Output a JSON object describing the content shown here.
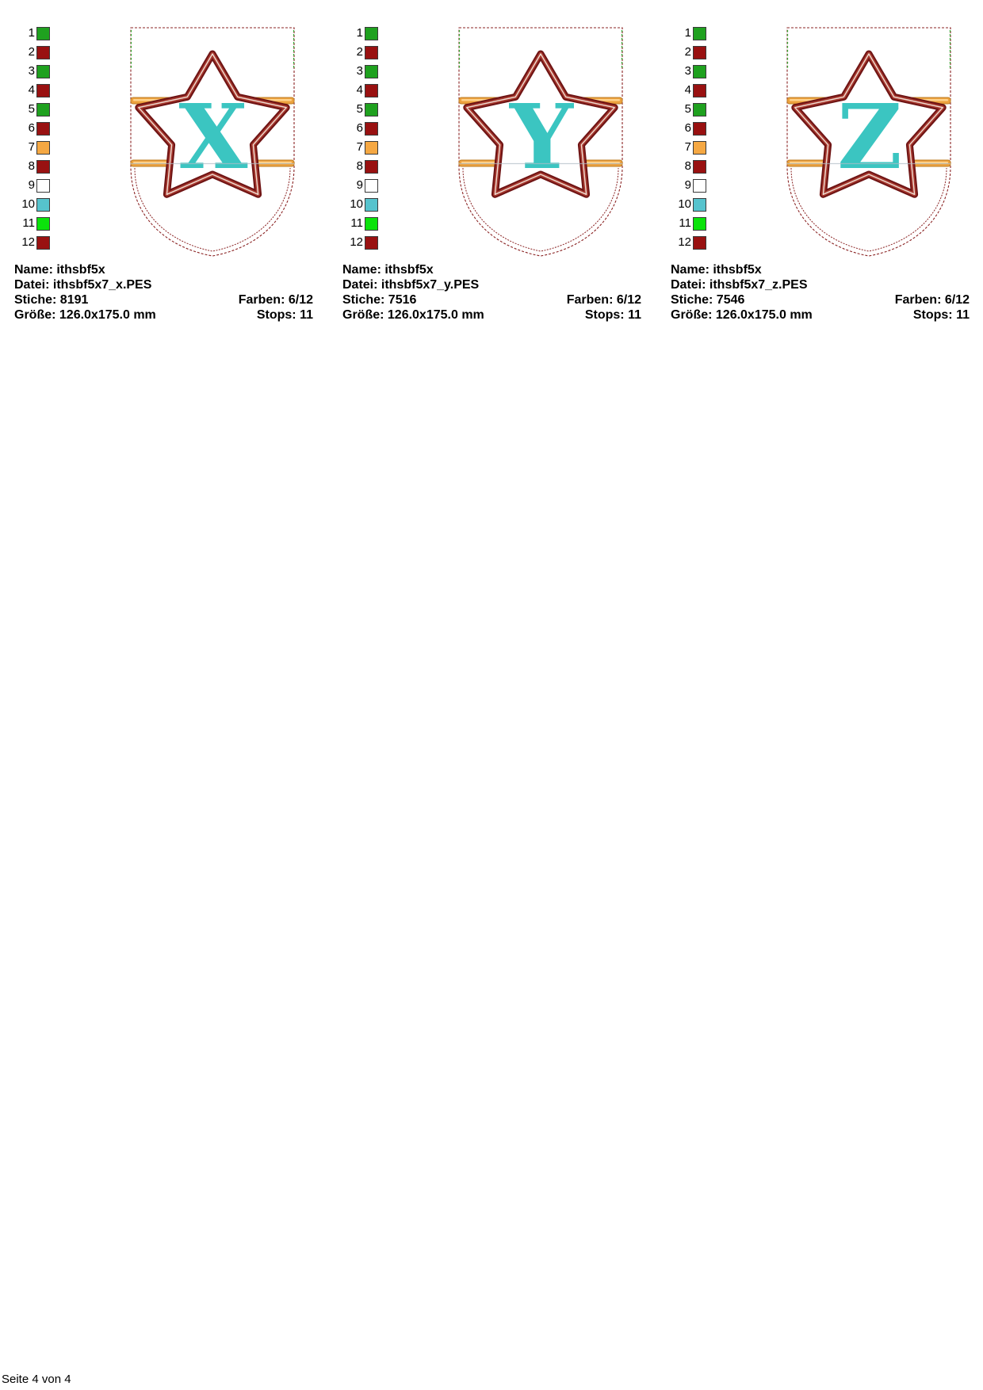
{
  "page": {
    "footer": "Seite 4 von 4"
  },
  "palette": {
    "items": [
      {
        "n": "1",
        "color": "#1FA11F"
      },
      {
        "n": "2",
        "color": "#991111"
      },
      {
        "n": "3",
        "color": "#1FA11F"
      },
      {
        "n": "4",
        "color": "#991111"
      },
      {
        "n": "5",
        "color": "#1FA11F"
      },
      {
        "n": "6",
        "color": "#991111"
      },
      {
        "n": "7",
        "color": "#F5A843"
      },
      {
        "n": "8",
        "color": "#991111"
      },
      {
        "n": "9",
        "color": "#FFFFFF"
      },
      {
        "n": "10",
        "color": "#56C3CD"
      },
      {
        "n": "11",
        "color": "#0BE30B"
      },
      {
        "n": "12",
        "color": "#991111"
      }
    ]
  },
  "artwork": {
    "shield_outline": "#8B2424",
    "guide_green": "#2FA82F",
    "bar_fill": "#EDA23E",
    "bar_edge": "#BD7E26",
    "bar_highlight": "#FFD794",
    "star_dark": "#6F1414",
    "star_mid": "#A83A30",
    "star_highlight": "#EFDFD4",
    "letter_fill": "#3BC5C1",
    "guide_gray": "#AEBDC6"
  },
  "designs": [
    {
      "letter": "X",
      "info": {
        "name": "Name: ithsbf5x",
        "file": "Datei: ithsbf5x7_x.PES",
        "stitches": "Stiche: 8191",
        "colors": "Farben: 6/12",
        "size": "Größe: 126.0x175.0 mm",
        "stops": "Stops: 11"
      }
    },
    {
      "letter": "Y",
      "info": {
        "name": "Name: ithsbf5x",
        "file": "Datei: ithsbf5x7_y.PES",
        "stitches": "Stiche: 7516",
        "colors": "Farben: 6/12",
        "size": "Größe: 126.0x175.0 mm",
        "stops": "Stops: 11"
      }
    },
    {
      "letter": "Z",
      "info": {
        "name": "Name: ithsbf5x",
        "file": "Datei: ithsbf5x7_z.PES",
        "stitches": "Stiche: 7546",
        "colors": "Farben: 6/12",
        "size": "Größe: 126.0x175.0 mm",
        "stops": "Stops: 11"
      }
    }
  ]
}
